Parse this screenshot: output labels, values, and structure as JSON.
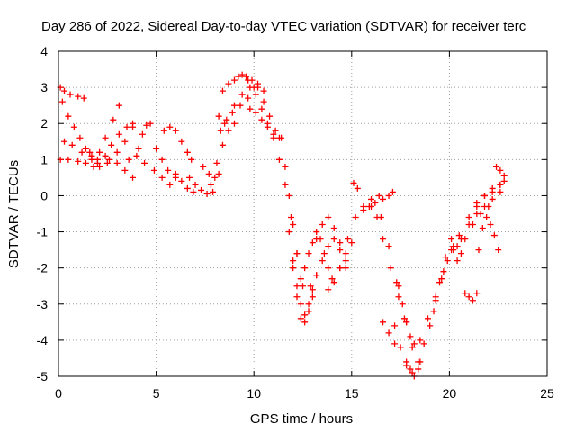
{
  "chart_data": {
    "type": "scatter",
    "title": "Day 286 of 2022, Sidereal Day-to-day VTEC variation (SDTVAR) for receiver terc",
    "xlabel": "GPS time / hours",
    "ylabel": "SDTVAR / TECUs",
    "xlim": [
      0,
      25
    ],
    "ylim": [
      -5,
      4
    ],
    "x_ticks": [
      "0",
      "5",
      "10",
      "15",
      "20",
      "25"
    ],
    "y_ticks": [
      "4",
      "3",
      "2",
      "1",
      "0",
      "-1",
      "-2",
      "-3",
      "-4",
      "-5"
    ],
    "grid": true,
    "marker": "+",
    "color": "#ff0000",
    "series": [
      {
        "x": [
          0.1,
          0.3,
          0.6,
          1.0,
          1.3
        ],
        "y": [
          3.0,
          2.9,
          2.8,
          2.75,
          2.7
        ]
      },
      {
        "x": [
          0.2,
          0.5,
          0.8,
          1.1,
          1.4,
          1.7,
          2.0
        ],
        "y": [
          2.6,
          2.2,
          1.9,
          1.6,
          1.3,
          1.1,
          1.0
        ]
      },
      {
        "x": [
          0.1,
          0.5,
          1.0,
          1.4,
          1.8
        ],
        "y": [
          1.0,
          1.0,
          0.95,
          0.9,
          0.8
        ]
      },
      {
        "x": [
          0.3,
          0.7,
          1.2,
          1.7,
          2.1
        ],
        "y": [
          1.5,
          1.4,
          1.2,
          1.0,
          0.8
        ]
      },
      {
        "x": [
          1.8,
          2.1,
          2.4,
          2.8,
          3.1
        ],
        "y": [
          0.8,
          1.2,
          1.6,
          2.1,
          2.5
        ]
      },
      {
        "x": [
          1.6,
          2.0,
          2.5,
          3.0,
          3.4,
          3.8
        ],
        "y": [
          1.2,
          0.9,
          0.9,
          1.2,
          1.5,
          1.9
        ]
      },
      {
        "x": [
          2.4,
          2.7,
          3.1,
          3.5,
          3.8
        ],
        "y": [
          1.1,
          1.4,
          1.7,
          1.9,
          2.0
        ]
      },
      {
        "x": [
          2.6,
          3.0,
          3.4,
          3.8
        ],
        "y": [
          1.0,
          0.9,
          0.7,
          0.5
        ]
      },
      {
        "x": [
          3.6,
          4.0,
          4.4,
          4.9,
          5.3,
          5.7
        ],
        "y": [
          1.0,
          1.1,
          0.9,
          0.7,
          0.5,
          0.3
        ]
      },
      {
        "x": [
          4.1,
          4.3,
          4.5,
          4.7
        ],
        "y": [
          1.3,
          1.7,
          1.95,
          2.0
        ]
      },
      {
        "x": [
          5.0,
          5.3,
          5.6,
          6.0
        ],
        "y": [
          1.3,
          1.0,
          0.7,
          0.5
        ]
      },
      {
        "x": [
          5.4,
          5.7,
          6.0,
          6.3,
          6.6,
          6.8
        ],
        "y": [
          1.8,
          1.9,
          1.8,
          1.5,
          1.2,
          1.0
        ]
      },
      {
        "x": [
          6.0,
          6.3,
          6.6,
          6.9
        ],
        "y": [
          0.6,
          0.4,
          0.2,
          0.1
        ]
      },
      {
        "x": [
          6.7,
          7.0,
          7.3,
          7.6,
          7.9
        ],
        "y": [
          0.5,
          0.3,
          0.15,
          0.05,
          0.1
        ]
      },
      {
        "x": [
          7.4,
          7.7,
          8.0,
          8.2
        ],
        "y": [
          0.8,
          0.6,
          0.5,
          0.6
        ]
      },
      {
        "x": [
          7.8,
          8.1,
          8.4,
          8.7,
          9.0
        ],
        "y": [
          0.3,
          0.9,
          1.4,
          1.8,
          2.0
        ]
      },
      {
        "x": [
          8.2,
          8.4,
          8.7,
          9.0,
          9.2,
          9.4,
          9.7,
          10.0
        ],
        "y": [
          2.2,
          2.9,
          3.1,
          3.2,
          3.3,
          3.35,
          3.2,
          3.0
        ]
      },
      {
        "x": [
          8.3,
          8.6,
          9.0,
          9.4,
          9.8,
          10.2
        ],
        "y": [
          1.8,
          2.1,
          2.5,
          2.8,
          3.0,
          3.1
        ]
      },
      {
        "x": [
          8.5,
          8.9,
          9.3,
          9.7,
          10.1,
          10.5
        ],
        "y": [
          2.0,
          2.3,
          2.5,
          2.7,
          2.8,
          2.9
        ]
      },
      {
        "x": [
          9.6,
          9.9,
          10.2,
          10.5,
          10.8,
          11.1
        ],
        "y": [
          3.3,
          3.2,
          3.0,
          2.6,
          2.2,
          1.8
        ]
      },
      {
        "x": [
          9.8,
          10.1,
          10.4,
          10.7,
          11.0,
          11.3
        ],
        "y": [
          2.4,
          2.3,
          2.1,
          1.9,
          1.7,
          1.6
        ]
      },
      {
        "x": [
          10.4,
          10.7,
          11.0,
          11.3,
          11.6,
          11.9,
          12.2,
          12.5
        ],
        "y": [
          2.4,
          2.0,
          1.6,
          1.0,
          0.3,
          -0.6,
          -1.6,
          -2.5
        ]
      },
      {
        "x": [
          11.4,
          11.6,
          11.8,
          12.0,
          12.2,
          12.4
        ],
        "y": [
          1.6,
          0.8,
          0.0,
          -0.8,
          -1.6,
          -2.3
        ]
      },
      {
        "x": [
          11.8,
          12.0,
          12.2,
          12.4,
          12.6,
          12.8,
          13.0,
          13.2
        ],
        "y": [
          -1.0,
          -1.8,
          -2.5,
          -3.0,
          -3.3,
          -3.0,
          -2.6,
          -2.2
        ]
      },
      {
        "x": [
          12.0,
          12.2,
          12.4,
          12.6,
          12.8,
          13.0
        ],
        "y": [
          -2.0,
          -2.8,
          -3.4,
          -3.5,
          -3.2,
          -2.8
        ]
      },
      {
        "x": [
          12.6,
          12.8,
          13.0,
          13.2,
          13.4,
          13.6,
          13.8,
          14.0
        ],
        "y": [
          -2.0,
          -1.6,
          -1.3,
          -1.0,
          -1.2,
          -1.6,
          -2.0,
          -2.3
        ]
      },
      {
        "x": [
          12.9,
          13.2,
          13.5,
          13.8,
          14.1,
          14.4,
          14.7
        ],
        "y": [
          -2.5,
          -2.2,
          -1.8,
          -1.4,
          -1.2,
          -1.5,
          -2.0
        ]
      },
      {
        "x": [
          13.2,
          13.5,
          13.8,
          14.1,
          14.4,
          14.7
        ],
        "y": [
          -1.2,
          -0.8,
          -0.6,
          -0.9,
          -1.3,
          -1.8
        ]
      },
      {
        "x": [
          13.8,
          14.1,
          14.4,
          14.7,
          15.0
        ],
        "y": [
          -2.6,
          -2.4,
          -2.0,
          -1.6,
          -1.3
        ]
      },
      {
        "x": [
          14.4,
          14.8,
          15.2,
          15.6,
          16.0,
          16.4
        ],
        "y": [
          -2.0,
          -1.2,
          -0.6,
          -0.3,
          -0.1,
          0.0
        ]
      },
      {
        "x": [
          15.1,
          15.3
        ],
        "y": [
          0.35,
          0.2
        ]
      },
      {
        "x": [
          15.6,
          15.9,
          16.2,
          16.6,
          16.9,
          17.1
        ],
        "y": [
          -0.4,
          -0.3,
          -0.2,
          -0.1,
          0.0,
          0.1
        ]
      },
      {
        "x": [
          16.0,
          16.3,
          16.6,
          17.0,
          17.4,
          17.8
        ],
        "y": [
          -0.3,
          -0.6,
          -1.2,
          -2.0,
          -2.8,
          -3.5
        ]
      },
      {
        "x": [
          16.5,
          16.9,
          17.3,
          17.7,
          18.1,
          18.5
        ],
        "y": [
          -0.6,
          -1.4,
          -2.4,
          -3.4,
          -4.2,
          -4.6
        ]
      },
      {
        "x": [
          16.6,
          16.9,
          17.2
        ],
        "y": [
          -3.5,
          -3.8,
          -4.1
        ]
      },
      {
        "x": [
          17.2,
          17.5,
          17.8,
          18.1,
          18.4
        ],
        "y": [
          -3.6,
          -4.2,
          -4.7,
          -4.9,
          -4.8
        ]
      },
      {
        "x": [
          17.4,
          17.6,
          17.8,
          18.0,
          18.2
        ],
        "y": [
          -2.5,
          -3.0,
          -3.5,
          -3.9,
          -4.1
        ]
      },
      {
        "x": [
          17.8,
          18.0,
          18.2,
          18.4
        ],
        "y": [
          -4.6,
          -4.8,
          -5.0,
          -4.8
        ]
      },
      {
        "x": [
          18.4,
          18.7,
          19.0,
          19.3,
          19.6,
          19.9,
          20.2,
          20.5
        ],
        "y": [
          -4.6,
          -4.1,
          -3.6,
          -2.9,
          -2.3,
          -1.8,
          -1.4,
          -1.1
        ]
      },
      {
        "x": [
          18.5,
          18.9,
          19.3,
          19.7,
          20.1
        ],
        "y": [
          -4.0,
          -3.4,
          -2.8,
          -2.1,
          -1.5
        ]
      },
      {
        "x": [
          19.2,
          19.5,
          19.8,
          20.1
        ],
        "y": [
          -3.2,
          -2.4,
          -1.7,
          -1.2
        ]
      },
      {
        "x": [
          20.2,
          20.4,
          20.6
        ],
        "y": [
          -1.5,
          -1.4,
          -1.6
        ]
      },
      {
        "x": [
          20.4,
          20.8,
          21.2,
          21.6,
          22.0
        ],
        "y": [
          -1.8,
          -1.2,
          -0.8,
          -0.5,
          -0.3
        ]
      },
      {
        "x": [
          20.6,
          21.0,
          21.4,
          21.8,
          22.2,
          22.6,
          22.8
        ],
        "y": [
          -1.2,
          -0.6,
          -0.2,
          0.0,
          0.1,
          0.3,
          0.4
        ]
      },
      {
        "x": [
          21.0,
          21.4,
          21.8,
          22.2,
          22.6
        ],
        "y": [
          -0.8,
          -0.5,
          -0.3,
          -0.1,
          0.1
        ]
      },
      {
        "x": [
          21.4,
          21.8,
          22.2,
          22.6
        ],
        "y": [
          -0.3,
          0.0,
          0.2,
          0.3
        ]
      },
      {
        "x": [
          20.8,
          21.0,
          21.2,
          21.4
        ],
        "y": [
          -2.7,
          -2.8,
          -2.9,
          -2.7
        ]
      },
      {
        "x": [
          21.5,
          21.7,
          21.9,
          22.1,
          22.3,
          22.5
        ],
        "y": [
          -1.5,
          -0.9,
          -0.6,
          -0.8,
          -1.1,
          -1.5
        ]
      },
      {
        "x": [
          22.4,
          22.6,
          22.8
        ],
        "y": [
          0.8,
          0.7,
          0.55
        ]
      }
    ]
  }
}
